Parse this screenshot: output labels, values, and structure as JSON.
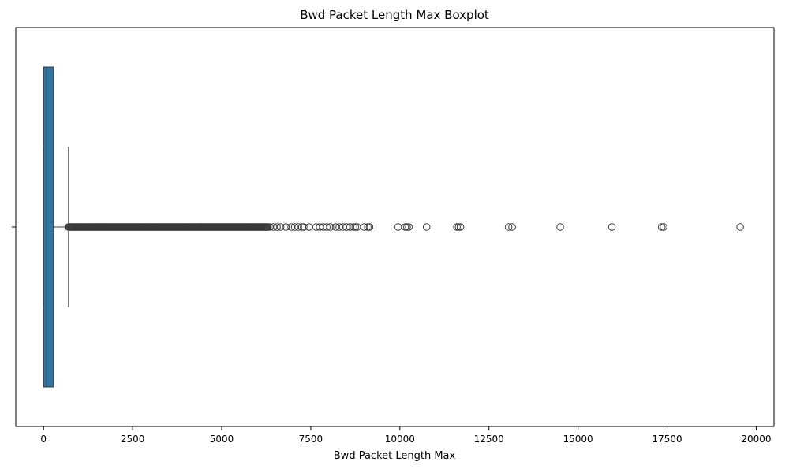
{
  "chart_data": {
    "type": "boxplot",
    "title": "Bwd Packet Length Max Boxplot",
    "xlabel": "Bwd Packet Length Max",
    "ylabel": "",
    "orientation": "horizontal",
    "xlim": [
      -780,
      20500
    ],
    "xticks": [
      0,
      2500,
      5000,
      7500,
      10000,
      12500,
      15000,
      17500,
      20000
    ],
    "xtick_labels": [
      "0",
      "2500",
      "5000",
      "7500",
      "10000",
      "12500",
      "15000",
      "17500",
      "20000"
    ],
    "grid": false,
    "box": {
      "whisker_low": 0,
      "q1": 0,
      "median": 90,
      "q3": 280,
      "whisker_high": 700,
      "color": "#3274a1"
    },
    "outliers_dense_range": [
      700,
      6300
    ],
    "outliers": [
      6350,
      6450,
      6550,
      6650,
      6800,
      6950,
      7050,
      7150,
      7250,
      7300,
      7450,
      7650,
      7750,
      7850,
      7950,
      8050,
      8200,
      8300,
      8400,
      8500,
      8600,
      8700,
      8750,
      8800,
      9000,
      9100,
      9150,
      9950,
      10150,
      10200,
      10250,
      10750,
      11600,
      11650,
      11700,
      13050,
      13150,
      14500,
      15950,
      17350,
      17400,
      19550
    ]
  }
}
